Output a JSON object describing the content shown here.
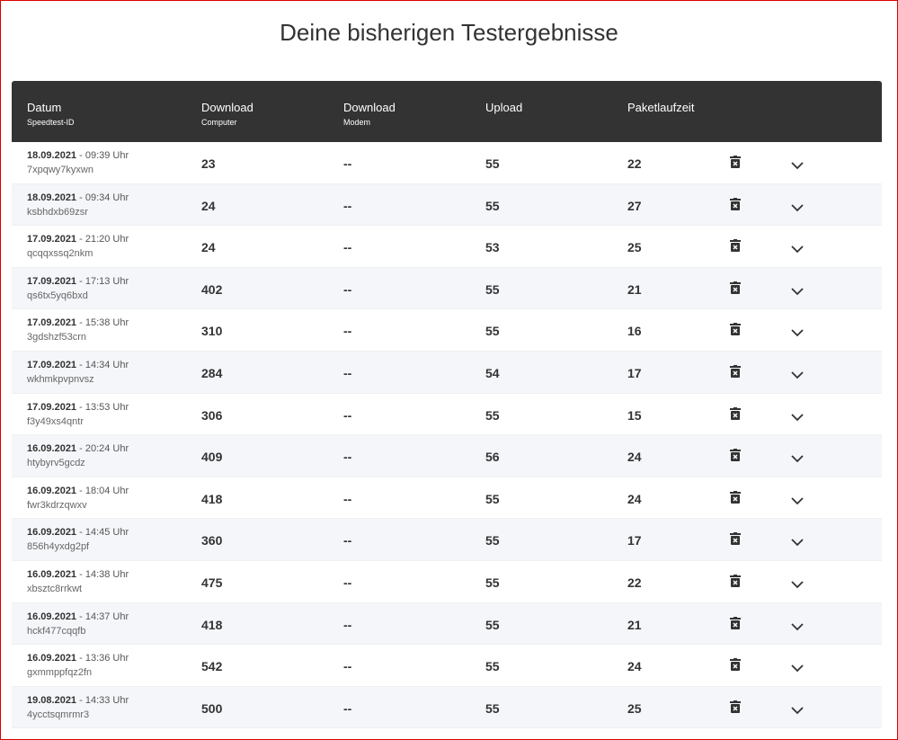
{
  "header": {
    "title": "Deine bisherigen Testergebnisse"
  },
  "table": {
    "columns": [
      {
        "label": "Datum",
        "sublabel": "Speedtest-ID"
      },
      {
        "label": "Download",
        "sublabel": "Computer"
      },
      {
        "label": "Download",
        "sublabel": "Modem"
      },
      {
        "label": "Upload"
      },
      {
        "label": "Paketlaufzeit"
      }
    ],
    "rows": [
      {
        "date": "18.09.2021",
        "time": "- 09:39 Uhr",
        "id": "7xpqwy7kyxwn",
        "download_computer": 23,
        "download_modem": "--",
        "upload": 55,
        "latency": 22
      },
      {
        "date": "18.09.2021",
        "time": "- 09:34 Uhr",
        "id": "ksbhdxb69zsr",
        "download_computer": 24,
        "download_modem": "--",
        "upload": 55,
        "latency": 27
      },
      {
        "date": "17.09.2021",
        "time": "- 21:20 Uhr",
        "id": "qcqqxssq2nkm",
        "download_computer": 24,
        "download_modem": "--",
        "upload": 53,
        "latency": 25
      },
      {
        "date": "17.09.2021",
        "time": "- 17:13 Uhr",
        "id": "qs6tx5yq6bxd",
        "download_computer": 402,
        "download_modem": "--",
        "upload": 55,
        "latency": 21
      },
      {
        "date": "17.09.2021",
        "time": "- 15:38 Uhr",
        "id": "3gdshzf53crn",
        "download_computer": 310,
        "download_modem": "--",
        "upload": 55,
        "latency": 16
      },
      {
        "date": "17.09.2021",
        "time": "- 14:34 Uhr",
        "id": "wkhmkpvpnvsz",
        "download_computer": 284,
        "download_modem": "--",
        "upload": 54,
        "latency": 17
      },
      {
        "date": "17.09.2021",
        "time": "- 13:53 Uhr",
        "id": "f3y49xs4qntr",
        "download_computer": 306,
        "download_modem": "--",
        "upload": 55,
        "latency": 15
      },
      {
        "date": "16.09.2021",
        "time": "- 20:24 Uhr",
        "id": "htybyrv5gcdz",
        "download_computer": 409,
        "download_modem": "--",
        "upload": 56,
        "latency": 24
      },
      {
        "date": "16.09.2021",
        "time": "- 18:04 Uhr",
        "id": "fwr3kdrzqwxv",
        "download_computer": 418,
        "download_modem": "--",
        "upload": 55,
        "latency": 24
      },
      {
        "date": "16.09.2021",
        "time": "- 14:45 Uhr",
        "id": "856h4yxdg2pf",
        "download_computer": 360,
        "download_modem": "--",
        "upload": 55,
        "latency": 17
      },
      {
        "date": "16.09.2021",
        "time": "- 14:38 Uhr",
        "id": "xbsztc8rrkwt",
        "download_computer": 475,
        "download_modem": "--",
        "upload": 55,
        "latency": 22
      },
      {
        "date": "16.09.2021",
        "time": "- 14:37 Uhr",
        "id": "hckf477cqqfb",
        "download_computer": 418,
        "download_modem": "--",
        "upload": 55,
        "latency": 21
      },
      {
        "date": "16.09.2021",
        "time": "- 13:36 Uhr",
        "id": "gxmmppfqz2fn",
        "download_computer": 542,
        "download_modem": "--",
        "upload": 55,
        "latency": 24
      },
      {
        "date": "19.08.2021",
        "time": "- 14:33 Uhr",
        "id": "4ycctsqmrmr3",
        "download_computer": 500,
        "download_modem": "--",
        "upload": 55,
        "latency": 25
      }
    ]
  }
}
